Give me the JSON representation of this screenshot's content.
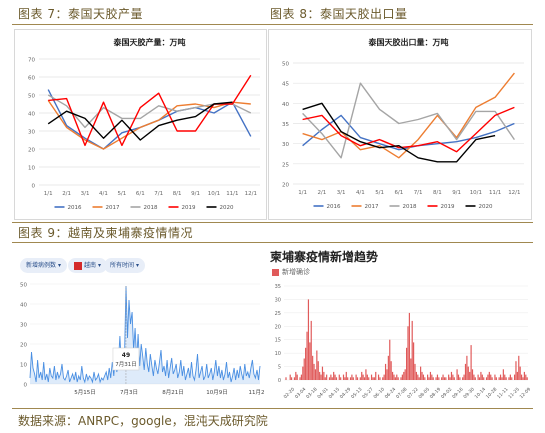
{
  "headers": {
    "fig7": "图表 7：泰国天胶产量",
    "fig8": "图表 8：泰国天胶出口量",
    "fig9": "图表 9：越南及柬埔寨疫情情况",
    "source": "数据来源：ANRPC，google，混沌天成研究院"
  },
  "filters": {
    "metric": "新增病例数",
    "country": "越南",
    "period": "所有时间"
  },
  "colors": {
    "2016": "#4472c4",
    "2017": "#ed7d31",
    "2018": "#a5a5a5",
    "2019": "#ff0000",
    "2020": "#000000",
    "vietnam": "#4a8fe2",
    "cambodia": "#e05a5a"
  },
  "chart_data": [
    {
      "type": "line",
      "title": "泰国天胶产量：万吨",
      "categories": [
        "1/1",
        "2/1",
        "3/1",
        "4/1",
        "5/1",
        "6/1",
        "7/1",
        "8/1",
        "9/1",
        "10/1",
        "11/1",
        "12/1"
      ],
      "ylim": [
        0,
        70
      ],
      "yticks": [
        0,
        10,
        20,
        30,
        40,
        50,
        60,
        70
      ],
      "grid": true,
      "legend": "bottom",
      "series": [
        {
          "name": "2016",
          "values": [
            53,
            33,
            26,
            20,
            29,
            32,
            36,
            41,
            43,
            40,
            46,
            27
          ]
        },
        {
          "name": "2017",
          "values": [
            47,
            32,
            25,
            20,
            26,
            32,
            36,
            44,
            45,
            43,
            46,
            45
          ]
        },
        {
          "name": "2018",
          "values": [
            50,
            44,
            32,
            43,
            37,
            37,
            44,
            41,
            43,
            45,
            45,
            40
          ]
        },
        {
          "name": "2019",
          "values": [
            47,
            48,
            22,
            46,
            22,
            43,
            51,
            30,
            30,
            45,
            45,
            61
          ]
        },
        {
          "name": "2020",
          "values": [
            34,
            41,
            37,
            26,
            36,
            25,
            33,
            36,
            38,
            45,
            46,
            null
          ]
        }
      ]
    },
    {
      "type": "line",
      "title": "泰国天胶出口量：万吨",
      "categories": [
        "1/1",
        "2/1",
        "3/1",
        "4/1",
        "5/1",
        "6/1",
        "7/1",
        "8/1",
        "9/1",
        "10/1",
        "11/1",
        "12/1"
      ],
      "ylim": [
        20,
        50
      ],
      "yticks": [
        20,
        25,
        30,
        35,
        40,
        45,
        50
      ],
      "grid": true,
      "legend": "bottom",
      "series": [
        {
          "name": "2016",
          "values": [
            29.5,
            33.5,
            37,
            31.5,
            30,
            28.5,
            29.5,
            30,
            30.5,
            31.5,
            33,
            35
          ]
        },
        {
          "name": "2017",
          "values": [
            32.5,
            31,
            33,
            28.5,
            29.5,
            26.5,
            31,
            37,
            31.5,
            39,
            41.5,
            47.5
          ]
        },
        {
          "name": "2018",
          "values": [
            37.5,
            32.5,
            26.5,
            45,
            38.5,
            35,
            36,
            37.5,
            31,
            38,
            38,
            31
          ]
        },
        {
          "name": "2019",
          "values": [
            36,
            37,
            32,
            29.5,
            31,
            29,
            29.5,
            30.5,
            28,
            32.5,
            37,
            39
          ]
        },
        {
          "name": "2020",
          "values": [
            38.5,
            40,
            33,
            30.5,
            29,
            29.5,
            26.5,
            25.5,
            25.5,
            31,
            32,
            null
          ]
        }
      ]
    },
    {
      "type": "area",
      "x_ticks": [
        "5月15日",
        "7月3日",
        "8月21日",
        "10月9日",
        "11月27日"
      ],
      "ylim": [
        0,
        50
      ],
      "yticks": [
        0,
        10,
        20,
        30,
        40,
        50
      ],
      "tooltip": {
        "value": "49",
        "date": "7月31日"
      },
      "series": [
        {
          "values": [
            3,
            16,
            8,
            5,
            1,
            12,
            3,
            6,
            2,
            11,
            2,
            5,
            1,
            8,
            4,
            3,
            9,
            2,
            6,
            3,
            5,
            10,
            3,
            2,
            4,
            7,
            1,
            3,
            5,
            2,
            6,
            1,
            4,
            2,
            9,
            3,
            1,
            5,
            2,
            4,
            3,
            1,
            6,
            2,
            3,
            5,
            1,
            3,
            2,
            4,
            6,
            2,
            8,
            3,
            11,
            4,
            15,
            6,
            10,
            24,
            9,
            18,
            11,
            49,
            23,
            42,
            30,
            36,
            17,
            28,
            12,
            25,
            9,
            20,
            14,
            7,
            18,
            10,
            6,
            15,
            9,
            4,
            12,
            8,
            5,
            11,
            17,
            6,
            9,
            4,
            12,
            3,
            8,
            13,
            5,
            7,
            10,
            3,
            6,
            12,
            4,
            9,
            2,
            5,
            8,
            3,
            11,
            4,
            2,
            7,
            15,
            3,
            6,
            9,
            2,
            4,
            10,
            3,
            5,
            8,
            2,
            6,
            12,
            4,
            9,
            3,
            7,
            2,
            5,
            11,
            3,
            6,
            1,
            4,
            8,
            2,
            7,
            3,
            9,
            5,
            2,
            10,
            4,
            6,
            3,
            8,
            12,
            5,
            3,
            7,
            2,
            9
          ]
        }
      ]
    },
    {
      "type": "bar",
      "title": "柬埔寨疫情新增趋势",
      "legend_label": "新增确诊",
      "x_ticks": [
        "02-20",
        "03-04",
        "03-18",
        "04-01",
        "04-15",
        "04-29",
        "05-13",
        "05-27",
        "06-10",
        "06-24",
        "07-08",
        "07-22",
        "08-05",
        "08-19",
        "09-02",
        "09-16",
        "09-30",
        "10-14",
        "10-28",
        "11-11",
        "11-25",
        "12-09"
      ],
      "ylim": [
        0,
        35
      ],
      "yticks": [
        0,
        5,
        10,
        15,
        20,
        25,
        30,
        35
      ],
      "series": [
        {
          "name": "新增确诊",
          "values": [
            0,
            1,
            0,
            0,
            2,
            1,
            0,
            1,
            3,
            2,
            0,
            1,
            2,
            5,
            8,
            12,
            18,
            30,
            14,
            22,
            9,
            6,
            4,
            11,
            7,
            3,
            2,
            5,
            3,
            1,
            2,
            0,
            1,
            2,
            1,
            3,
            2,
            1,
            0,
            2,
            1,
            0,
            2,
            1,
            3,
            1,
            0,
            1,
            2,
            1,
            0,
            2,
            1,
            0,
            1,
            3,
            2,
            1,
            4,
            2,
            1,
            0,
            2,
            1,
            1,
            3,
            0,
            2,
            1,
            0,
            1,
            2,
            6,
            4,
            9,
            15,
            7,
            3,
            2,
            1,
            2,
            1,
            0,
            1,
            2,
            3,
            4,
            12,
            20,
            25,
            8,
            22,
            14,
            6,
            3,
            2,
            1,
            5,
            3,
            2,
            1,
            0,
            2,
            1,
            3,
            2,
            1,
            0,
            1,
            2,
            1,
            0,
            1,
            2,
            1,
            1,
            0,
            2,
            1,
            3,
            2,
            1,
            0,
            4,
            2,
            1,
            0,
            1,
            2,
            6,
            9,
            5,
            3,
            13,
            4,
            2,
            1,
            0,
            2,
            1,
            3,
            2,
            1,
            0,
            1,
            2,
            3,
            2,
            1,
            0,
            2,
            1,
            0,
            1,
            2,
            1,
            4,
            2,
            1,
            0,
            1,
            2,
            1,
            0,
            2,
            7,
            3,
            9,
            5,
            2,
            1,
            3,
            2,
            1
          ]
        }
      ]
    }
  ]
}
